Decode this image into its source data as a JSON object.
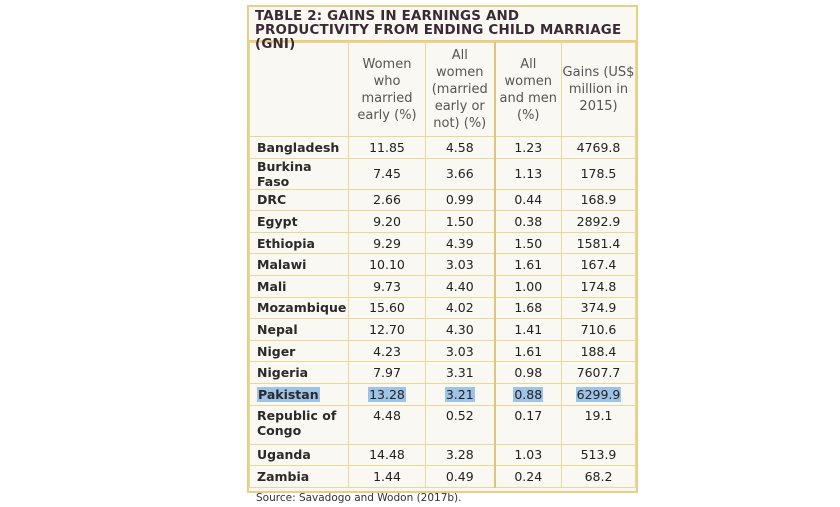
{
  "title": "TABLE 2: GAINS IN EARNINGS AND PRODUCTIVITY FROM ENDING CHILD MARRIAGE (GNI)",
  "headers": [
    "",
    "Women who married early (%)",
    "All women (married early or not) (%)",
    "All women and men (%)",
    "Gains (US$ million in 2015)"
  ],
  "rows": [
    [
      "Bangladesh",
      "11.85",
      "4.58",
      "1.23",
      "4769.8"
    ],
    [
      "Burkina Faso",
      "7.45",
      "3.66",
      "1.13",
      "178.5"
    ],
    [
      "DRC",
      "2.66",
      "0.99",
      "0.44",
      "168.9"
    ],
    [
      "Egypt",
      "9.20",
      "1.50",
      "0.38",
      "2892.9"
    ],
    [
      "Ethiopia",
      "9.29",
      "4.39",
      "1.50",
      "1581.4"
    ],
    [
      "Malawi",
      "10.10",
      "3.03",
      "1.61",
      "167.4"
    ],
    [
      "Mali",
      "9.73",
      "4.40",
      "1.00",
      "174.8"
    ],
    [
      "Mozambique",
      "15.60",
      "4.02",
      "1.68",
      "374.9"
    ],
    [
      "Nepal",
      "12.70",
      "4.30",
      "1.41",
      "710.6"
    ],
    [
      "Niger",
      "4.23",
      "3.03",
      "1.61",
      "188.4"
    ],
    [
      "Nigeria",
      "7.97",
      "3.31",
      "0.98",
      "7607.7"
    ],
    [
      "Pakistan",
      "13.28",
      "3.21",
      "0.88",
      "6299.9"
    ],
    [
      "Republic of Congo",
      "4.48",
      "0.52",
      "0.17",
      "19.1"
    ],
    [
      "Uganda",
      "14.48",
      "3.28",
      "1.03",
      "513.9"
    ],
    [
      "Zambia",
      "1.44",
      "0.49",
      "0.24",
      "68.2"
    ]
  ],
  "highlighted_row": "Pakistan",
  "highlight_color": "#9fc3e6",
  "border_color": "#e8cf86",
  "source": "Source: Savadogo and Wodon (2017b)."
}
